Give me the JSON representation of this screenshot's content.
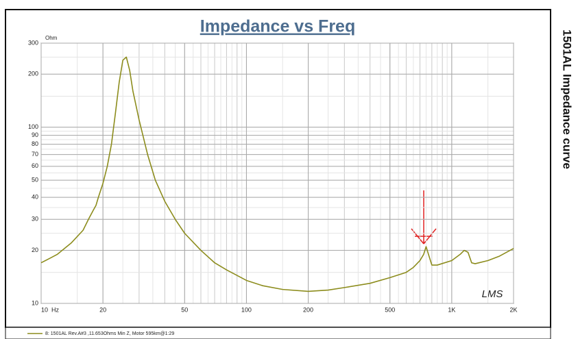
{
  "chart_data": {
    "type": "line",
    "title": "Impedance vs Freq",
    "y_unit": "Ohm",
    "xscale": "log",
    "yscale": "log",
    "grid": true,
    "xlim": [
      10,
      2000
    ],
    "ylim": [
      10,
      300
    ],
    "xticks": [
      {
        "value": 10,
        "label": "10  Hz"
      },
      20,
      50,
      100,
      200,
      500,
      {
        "value": 1000,
        "label": "1K"
      },
      {
        "value": 2000,
        "label": "2K"
      }
    ],
    "yticks": [
      10,
      20,
      30,
      40,
      50,
      60,
      70,
      80,
      90,
      100,
      200,
      300
    ],
    "x": [
      10,
      11,
      12,
      14,
      16,
      17,
      18,
      18.5,
      19,
      20,
      21,
      22,
      23,
      24,
      25,
      26,
      27,
      28,
      30,
      33,
      36,
      40,
      45,
      50,
      60,
      70,
      80,
      100,
      120,
      150,
      200,
      250,
      300,
      400,
      500,
      600,
      650,
      700,
      730,
      750,
      770,
      800,
      850,
      1000,
      1100,
      1150,
      1200,
      1250,
      1300,
      1500,
      1700,
      2000
    ],
    "series": [
      {
        "name": "8: 1501AL Rev.A#3 ,11.653Ohms Min Z, Motor 595km@1:29",
        "color": "#8c8c1c",
        "values": [
          17,
          18,
          19,
          22,
          26,
          30,
          34,
          36,
          40,
          48,
          60,
          80,
          120,
          180,
          240,
          250,
          210,
          160,
          110,
          70,
          50,
          38,
          30,
          25,
          20,
          17,
          15.5,
          13.5,
          12.6,
          12,
          11.7,
          11.9,
          12.3,
          13,
          14,
          15,
          16,
          17.5,
          19,
          21,
          19,
          16.5,
          16.5,
          17.5,
          19,
          20,
          19.5,
          17,
          16.8,
          17.5,
          18.5,
          20.5
        ]
      }
    ],
    "annotation": "LMS"
  },
  "side_title": "1501AL Impedance curve"
}
